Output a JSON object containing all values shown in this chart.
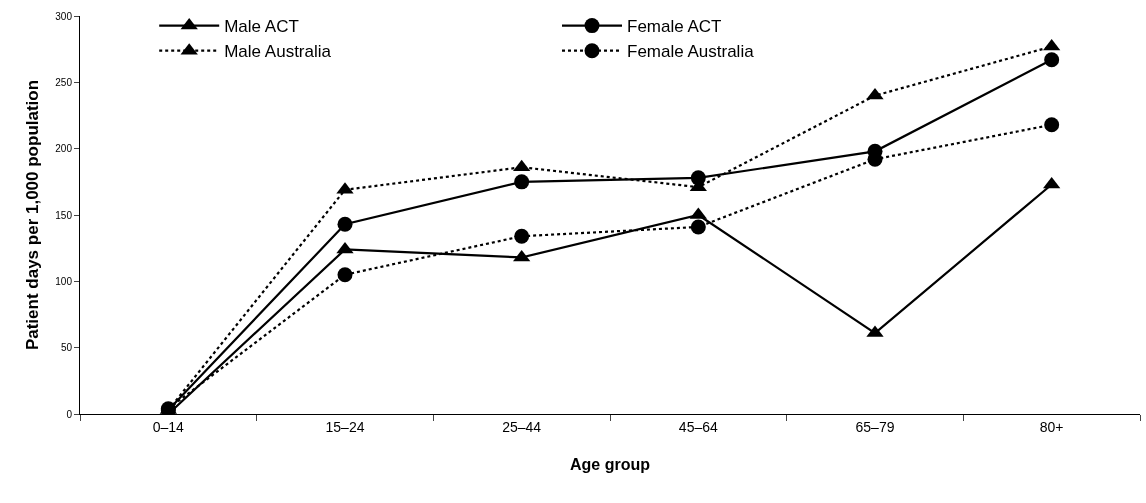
{
  "chart_data": {
    "type": "line",
    "xlabel": "Age group",
    "ylabel": "Patient days per 1,000 population",
    "categories": [
      "0–14",
      "15–24",
      "25–44",
      "45–64",
      "65–79",
      "80+"
    ],
    "series": [
      {
        "name": "Male ACT",
        "color": "#000000",
        "marker": "triangle",
        "line_style": "solid",
        "values": [
          0,
          124,
          118,
          150,
          61,
          173
        ]
      },
      {
        "name": "Male Australia",
        "color": "#000000",
        "marker": "triangle",
        "line_style": "dotted",
        "values": [
          3,
          169,
          186,
          171,
          240,
          277
        ]
      },
      {
        "name": "Female ACT",
        "color": "#000000",
        "marker": "circle",
        "line_style": "solid",
        "values": [
          3,
          143,
          175,
          178,
          198,
          267
        ]
      },
      {
        "name": "Female Australia",
        "color": "#000000",
        "marker": "circle",
        "line_style": "dotted",
        "values": [
          4,
          105,
          134,
          141,
          192,
          218
        ]
      }
    ],
    "ylim": [
      0,
      300
    ],
    "yticks": [
      0,
      50,
      100,
      150,
      200,
      250,
      300
    ],
    "legend": "top left"
  }
}
